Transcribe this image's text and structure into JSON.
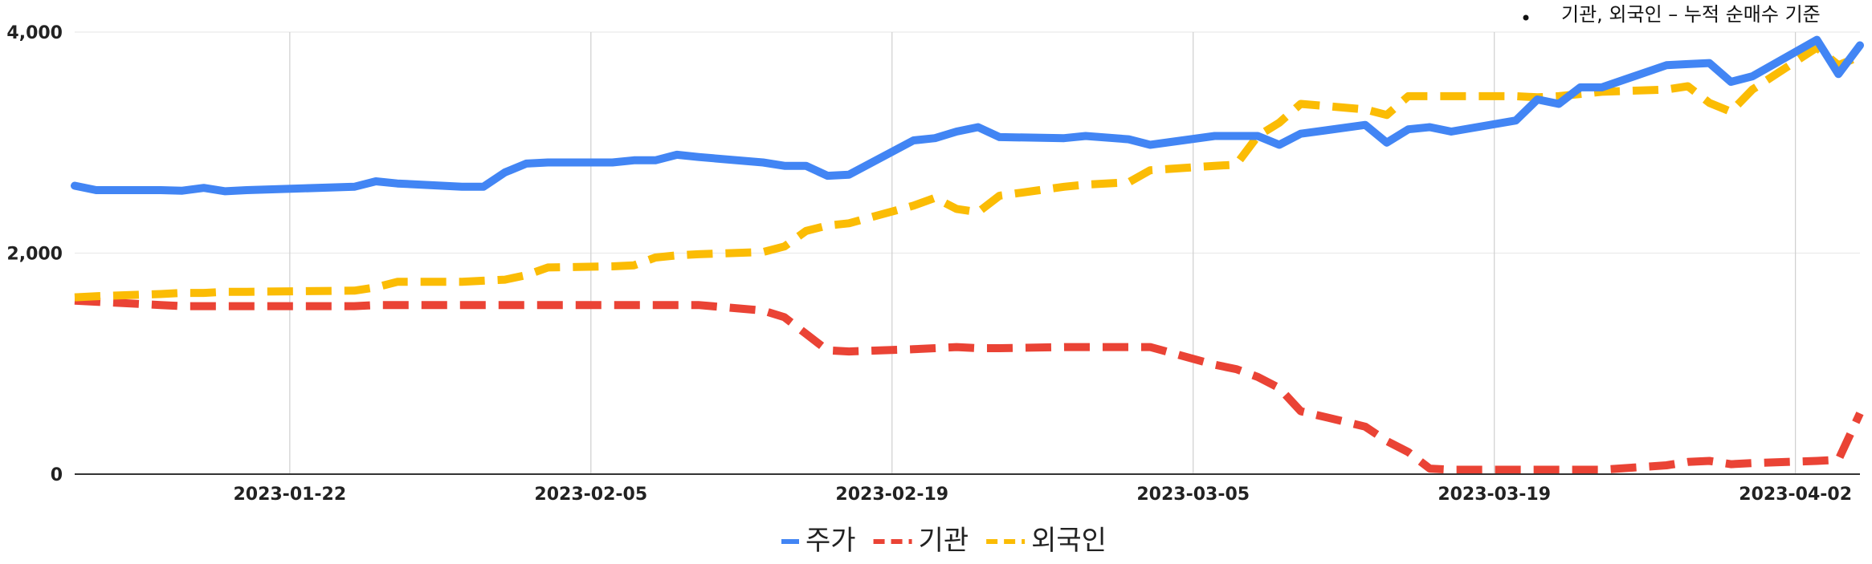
{
  "chart_data": {
    "type": "line",
    "title": "",
    "xlabel": "",
    "ylabel": "",
    "annotation": "기관, 외국인 – 누적 순매수 기준",
    "x_tick_labels": [
      "2023-01-22",
      "2023-02-05",
      "2023-02-19",
      "2023-03-05",
      "2023-03-19",
      "2023-04-02"
    ],
    "y_tick_labels": [
      "0",
      "2,000",
      "4,000"
    ],
    "ylim": [
      0,
      4000
    ],
    "xlim": [
      "2023-01-12",
      "2023-04-05"
    ],
    "grid": {
      "vertical": true,
      "horizontal": true
    },
    "legend_position": "bottom",
    "x": [
      "2023-01-12",
      "2023-01-13",
      "2023-01-16",
      "2023-01-17",
      "2023-01-18",
      "2023-01-19",
      "2023-01-20",
      "2023-01-25",
      "2023-01-26",
      "2023-01-27",
      "2023-01-30",
      "2023-01-31",
      "2023-02-01",
      "2023-02-02",
      "2023-02-03",
      "2023-02-06",
      "2023-02-07",
      "2023-02-08",
      "2023-02-09",
      "2023-02-10",
      "2023-02-13",
      "2023-02-14",
      "2023-02-15",
      "2023-02-16",
      "2023-02-17",
      "2023-02-20",
      "2023-02-21",
      "2023-02-22",
      "2023-02-23",
      "2023-02-24",
      "2023-02-27",
      "2023-02-28",
      "2023-03-02",
      "2023-03-03",
      "2023-03-06",
      "2023-03-07",
      "2023-03-08",
      "2023-03-09",
      "2023-03-10",
      "2023-03-13",
      "2023-03-14",
      "2023-03-15",
      "2023-03-16",
      "2023-03-17",
      "2023-03-20",
      "2023-03-21",
      "2023-03-22",
      "2023-03-23",
      "2023-03-24",
      "2023-03-27",
      "2023-03-28",
      "2023-03-29",
      "2023-03-30",
      "2023-03-31",
      "2023-04-03",
      "2023-04-04",
      "2023-04-05"
    ],
    "series": [
      {
        "name": "주가",
        "color": "#4285f4",
        "style": "solid",
        "values": [
          2610,
          2570,
          2570,
          2565,
          2590,
          2560,
          2570,
          2600,
          2650,
          2630,
          2600,
          2600,
          2730,
          2810,
          2820,
          2820,
          2840,
          2840,
          2890,
          2870,
          2820,
          2790,
          2790,
          2700,
          2710,
          3020,
          3040,
          3100,
          3140,
          3050,
          3040,
          3060,
          3030,
          2980,
          3060,
          3060,
          3060,
          2980,
          3080,
          3160,
          3000,
          3120,
          3140,
          3100,
          3200,
          3390,
          3350,
          3500,
          3500,
          3700,
          3710,
          3720,
          3550,
          3600,
          3930,
          3620,
          3880
        ]
      },
      {
        "name": "기관",
        "color": "#ea4335",
        "style": "dashed",
        "values": [
          1570,
          1560,
          1530,
          1520,
          1520,
          1520,
          1520,
          1520,
          1530,
          1530,
          1530,
          1530,
          1530,
          1530,
          1530,
          1530,
          1530,
          1530,
          1530,
          1530,
          1480,
          1420,
          1270,
          1120,
          1110,
          1130,
          1140,
          1150,
          1140,
          1140,
          1150,
          1150,
          1150,
          1150,
          990,
          950,
          880,
          780,
          570,
          430,
          300,
          200,
          50,
          40,
          40,
          40,
          40,
          40,
          40,
          80,
          110,
          120,
          90,
          100,
          120,
          130,
          550
        ]
      },
      {
        "name": "외국인",
        "color": "#fbbc04",
        "style": "dashed",
        "values": [
          1600,
          1610,
          1630,
          1640,
          1640,
          1650,
          1650,
          1660,
          1690,
          1740,
          1740,
          1750,
          1760,
          1800,
          1870,
          1880,
          1890,
          1960,
          1980,
          1990,
          2010,
          2060,
          2200,
          2250,
          2270,
          2430,
          2500,
          2400,
          2370,
          2520,
          2600,
          2620,
          2640,
          2750,
          2790,
          2800,
          3060,
          3180,
          3350,
          3300,
          3250,
          3420,
          3420,
          3420,
          3420,
          3410,
          3420,
          3440,
          3460,
          3480,
          3510,
          3360,
          3280,
          3480,
          3860,
          3700,
          3780
        ]
      }
    ]
  }
}
